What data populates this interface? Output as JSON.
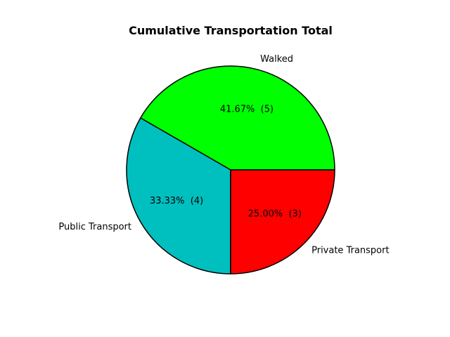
{
  "chart_data": {
    "type": "pie",
    "title": "Cumulative Transportation Total",
    "start_angle_deg": 0,
    "direction": "counterclockwise",
    "slices": [
      {
        "label": "Walked",
        "value": 5,
        "percent_label": "41.67%  (5)",
        "color": "#00ff00"
      },
      {
        "label": "Public Transport",
        "value": 4,
        "percent_label": "33.33%  (4)",
        "color": "#00bfbf"
      },
      {
        "label": "Private Transport",
        "value": 3,
        "percent_label": "25.00%  (3)",
        "color": "#ff0000"
      }
    ],
    "edge_color": "#000000",
    "legend": "none"
  }
}
